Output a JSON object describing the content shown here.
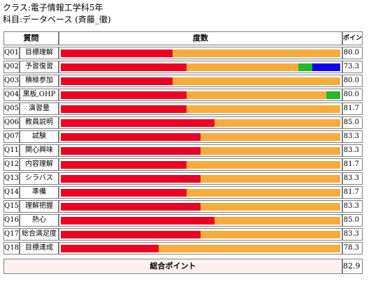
{
  "header": {
    "class_line": "クラス:電子情報工学科5年",
    "subject_line": "科目:データベース (斉藤_徹)"
  },
  "table": {
    "columns": [
      "質問",
      "度数",
      "ポイント"
    ],
    "segment_colors": {
      "red": "#ee0022",
      "orange": "#f9ab3c",
      "green": "#22bb22",
      "blue": "#1400f2"
    },
    "rows": [
      {
        "q": "Q01",
        "label": "目標理解",
        "points": "80.0",
        "segments": [
          {
            "color": "red",
            "fraction": 0.4
          },
          {
            "color": "orange",
            "fraction": 0.6
          }
        ]
      },
      {
        "q": "Q02",
        "label": "予習復習",
        "points": "73.3",
        "segments": [
          {
            "color": "red",
            "fraction": 0.45
          },
          {
            "color": "orange",
            "fraction": 0.4
          },
          {
            "color": "green",
            "fraction": 0.05
          },
          {
            "color": "blue",
            "fraction": 0.1
          }
        ]
      },
      {
        "q": "Q03",
        "label": "積極参加",
        "points": "80.0",
        "segments": [
          {
            "color": "red",
            "fraction": 0.4
          },
          {
            "color": "orange",
            "fraction": 0.6
          }
        ]
      },
      {
        "q": "Q04",
        "label": "黒板,OHP",
        "points": "80.0",
        "segments": [
          {
            "color": "red",
            "fraction": 0.45
          },
          {
            "color": "orange",
            "fraction": 0.5
          },
          {
            "color": "green",
            "fraction": 0.05
          }
        ]
      },
      {
        "q": "Q05",
        "label": "演習量",
        "points": "81.7",
        "segments": [
          {
            "color": "red",
            "fraction": 0.45
          },
          {
            "color": "orange",
            "fraction": 0.55
          }
        ]
      },
      {
        "q": "Q06",
        "label": "教員説明",
        "points": "85.0",
        "segments": [
          {
            "color": "red",
            "fraction": 0.55
          },
          {
            "color": "orange",
            "fraction": 0.45
          }
        ]
      },
      {
        "q": "Q07",
        "label": "試験",
        "points": "83.3",
        "segments": [
          {
            "color": "red",
            "fraction": 0.5
          },
          {
            "color": "orange",
            "fraction": 0.5
          }
        ]
      },
      {
        "q": "Q11",
        "label": "関心興味",
        "points": "83.3",
        "segments": [
          {
            "color": "red",
            "fraction": 0.5
          },
          {
            "color": "orange",
            "fraction": 0.5
          }
        ]
      },
      {
        "q": "Q12",
        "label": "内容理解",
        "points": "81.7",
        "segments": [
          {
            "color": "red",
            "fraction": 0.45
          },
          {
            "color": "orange",
            "fraction": 0.55
          }
        ]
      },
      {
        "q": "Q13",
        "label": "シラバス",
        "points": "83.3",
        "segments": [
          {
            "color": "red",
            "fraction": 0.5
          },
          {
            "color": "orange",
            "fraction": 0.5
          }
        ]
      },
      {
        "q": "Q14",
        "label": "準備",
        "points": "81.7",
        "segments": [
          {
            "color": "red",
            "fraction": 0.45
          },
          {
            "color": "orange",
            "fraction": 0.55
          }
        ]
      },
      {
        "q": "Q15",
        "label": "理解把握",
        "points": "83.3",
        "segments": [
          {
            "color": "red",
            "fraction": 0.5
          },
          {
            "color": "orange",
            "fraction": 0.5
          }
        ]
      },
      {
        "q": "Q16",
        "label": "熱心",
        "points": "85.0",
        "segments": [
          {
            "color": "red",
            "fraction": 0.55
          },
          {
            "color": "orange",
            "fraction": 0.45
          }
        ]
      },
      {
        "q": "Q17",
        "label": "総合満足度",
        "points": "83.3",
        "segments": [
          {
            "color": "red",
            "fraction": 0.5
          },
          {
            "color": "orange",
            "fraction": 0.5
          }
        ]
      },
      {
        "q": "Q18",
        "label": "目標達成",
        "points": "78.3",
        "segments": [
          {
            "color": "red",
            "fraction": 0.35
          },
          {
            "color": "orange",
            "fraction": 0.65
          }
        ]
      }
    ],
    "total_label": "総合ポイント",
    "total_value": "82.9"
  }
}
